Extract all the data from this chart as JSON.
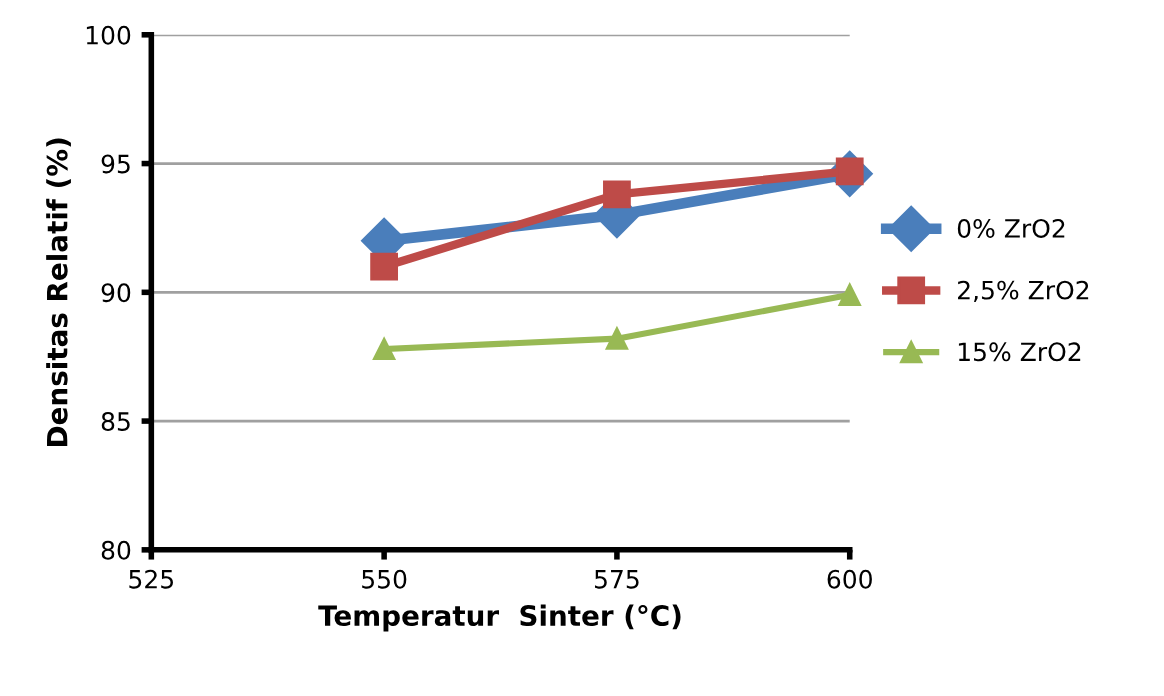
{
  "chart_data": {
    "type": "line",
    "xlabel": "Temperatur  Sinter (°C)",
    "ylabel": "Densitas Relatif (%)",
    "x": [
      550,
      575,
      600
    ],
    "series": [
      {
        "name": "0% ZrO2",
        "color": "#4a7ebb",
        "marker": "diamond",
        "values": [
          92.0,
          93.0,
          94.6
        ]
      },
      {
        "name": "2,5% ZrO2",
        "color": "#be4b48",
        "marker": "square",
        "values": [
          91.0,
          93.8,
          94.7
        ]
      },
      {
        "name": "15% ZrO2",
        "color": "#98b954",
        "marker": "triangle",
        "values": [
          87.8,
          88.2,
          89.9
        ]
      }
    ],
    "xlim": [
      525,
      600
    ],
    "xticks": [
      525,
      550,
      575,
      600
    ],
    "ylim": [
      80,
      100
    ],
    "yticks": [
      80,
      85,
      90,
      95,
      100
    ],
    "grid": "y",
    "legend": "right",
    "line_style": "solid"
  }
}
